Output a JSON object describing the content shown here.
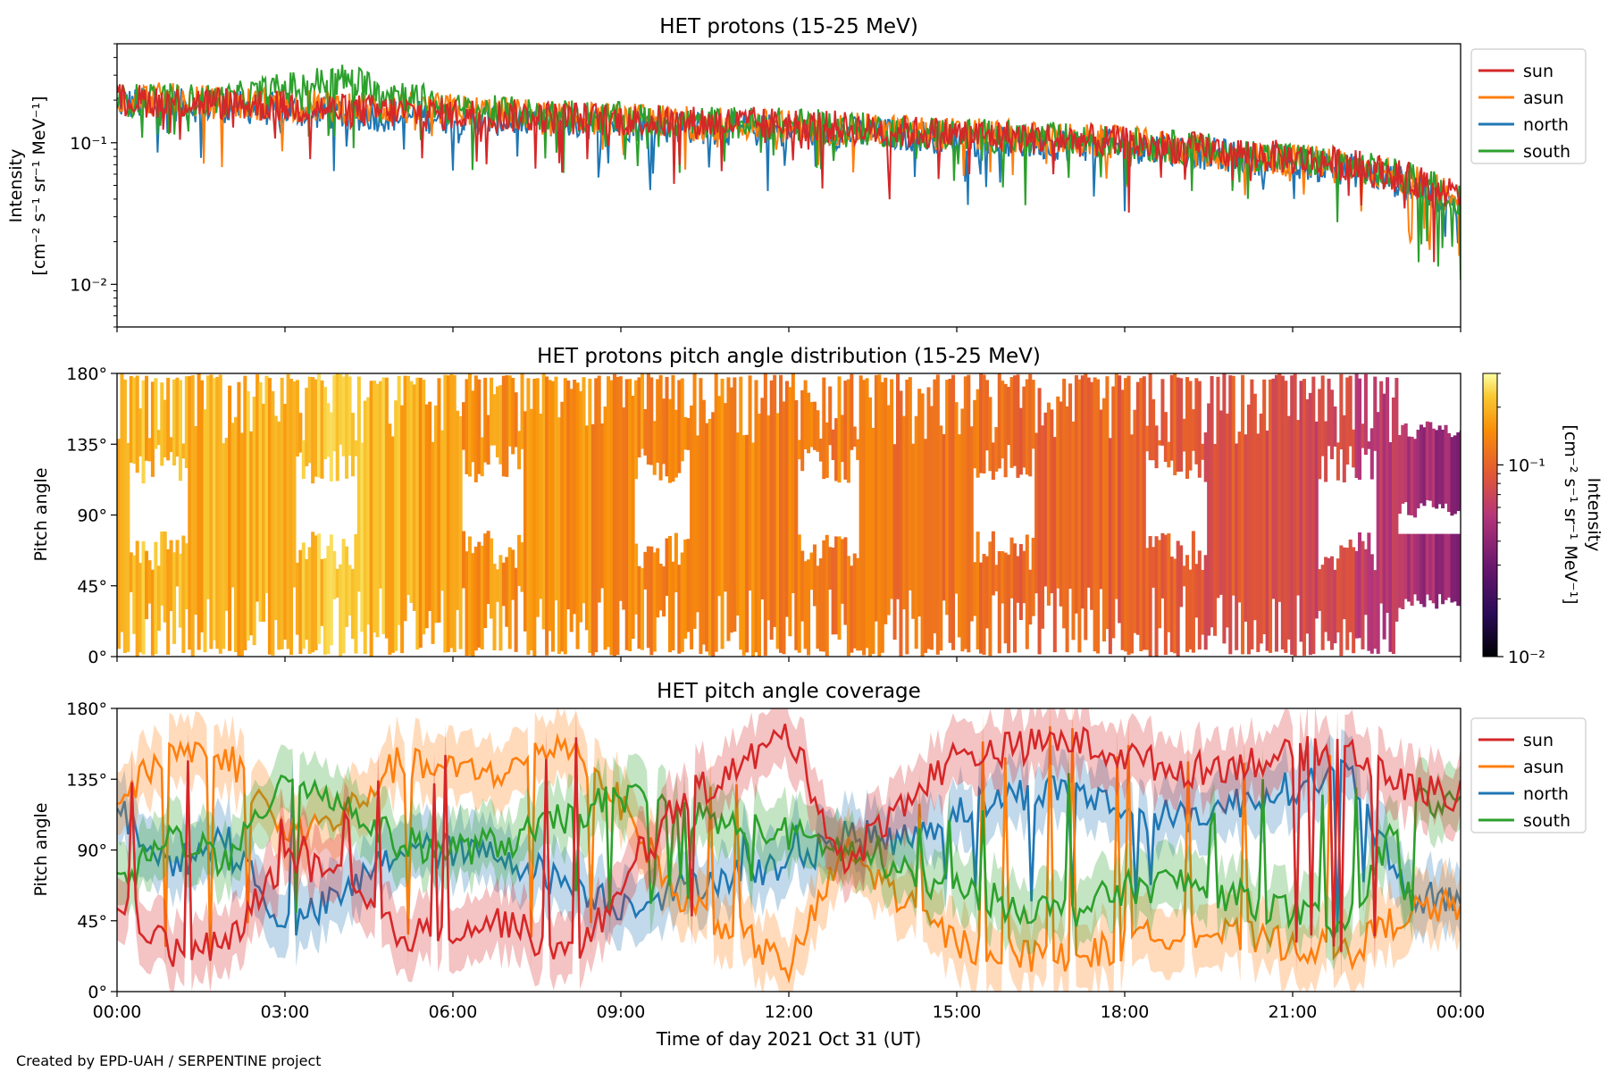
{
  "figure": {
    "xlabel": "Time of day 2021 Oct 31 (UT)",
    "credit": "Created by EPD-UAH / SERPENTINE project",
    "time_ticks": [
      "00:00",
      "03:00",
      "06:00",
      "09:00",
      "12:00",
      "15:00",
      "18:00",
      "21:00",
      "00:00"
    ]
  },
  "colors": {
    "sun": "#d62728",
    "asun": "#ff7f0e",
    "north": "#1f77b4",
    "south": "#2ca02c"
  },
  "chart_data": [
    {
      "type": "line",
      "title": "HET protons (15-25 MeV)",
      "xlabel": "",
      "ylabel": "Intensity",
      "ylabel_units": "[cm⁻² s⁻¹ sr⁻¹ MeV⁻¹]",
      "yscale": "log",
      "ylim": [
        0.005,
        0.5
      ],
      "yticks": [
        "10⁻¹",
        "10⁻²"
      ],
      "ytick_values": [
        0.1,
        0.01
      ],
      "x": [
        "00:00",
        "02:00",
        "04:00",
        "06:00",
        "08:00",
        "10:00",
        "12:00",
        "14:00",
        "16:00",
        "18:00",
        "20:00",
        "22:00",
        "23:30",
        "24:00"
      ],
      "series": [
        {
          "name": "sun",
          "values": [
            0.2,
            0.19,
            0.17,
            0.16,
            0.15,
            0.14,
            0.135,
            0.12,
            0.11,
            0.1,
            0.085,
            0.07,
            0.05,
            0.04
          ]
        },
        {
          "name": "asun",
          "values": [
            0.21,
            0.19,
            0.18,
            0.17,
            0.15,
            0.14,
            0.13,
            0.12,
            0.11,
            0.1,
            0.08,
            0.07,
            0.05,
            0.035
          ]
        },
        {
          "name": "north",
          "values": [
            0.19,
            0.18,
            0.16,
            0.15,
            0.14,
            0.13,
            0.12,
            0.115,
            0.1,
            0.095,
            0.08,
            0.065,
            0.045,
            0.03
          ]
        },
        {
          "name": "south",
          "values": [
            0.2,
            0.2,
            0.28,
            0.17,
            0.155,
            0.14,
            0.135,
            0.12,
            0.11,
            0.1,
            0.085,
            0.07,
            0.05,
            0.04
          ]
        }
      ],
      "legend": "right"
    },
    {
      "type": "heatmap",
      "title": "HET protons pitch angle distribution (15-25 MeV)",
      "xlabel": "",
      "ylabel": "Pitch angle",
      "ylim": [
        0,
        180
      ],
      "yticks": [
        "0°",
        "45°",
        "90°",
        "135°",
        "180°"
      ],
      "colorbar": {
        "label": "Intensity",
        "units": "[cm⁻² s⁻¹ sr⁻¹ MeV⁻¹]",
        "scale": "log",
        "range": [
          0.01,
          0.3
        ],
        "ticks": [
          "10⁻¹",
          "10⁻²"
        ],
        "colormap": "inferno"
      },
      "x": [
        "00:00",
        "02:00",
        "04:00",
        "06:00",
        "08:00",
        "10:00",
        "12:00",
        "14:00",
        "16:00",
        "18:00",
        "20:00",
        "22:00",
        "23:00",
        "24:00"
      ],
      "intensity": [
        0.2,
        0.19,
        0.22,
        0.16,
        0.15,
        0.14,
        0.135,
        0.12,
        0.11,
        0.1,
        0.085,
        0.07,
        0.05,
        0.04
      ]
    },
    {
      "type": "line",
      "title": "HET pitch angle coverage",
      "xlabel": "Time of day 2021 Oct 31 (UT)",
      "ylabel": "Pitch angle",
      "ylim": [
        0,
        180
      ],
      "yticks": [
        "0°",
        "45°",
        "90°",
        "135°",
        "180°"
      ],
      "x": [
        "00:00",
        "01:00",
        "02:00",
        "03:00",
        "04:00",
        "05:00",
        "06:00",
        "07:00",
        "08:00",
        "09:00",
        "10:00",
        "11:00",
        "12:00",
        "13:00",
        "14:00",
        "15:00",
        "16:00",
        "17:00",
        "18:00",
        "19:00",
        "20:00",
        "21:00",
        "22:00",
        "23:00",
        "24:00"
      ],
      "series": [
        {
          "name": "sun",
          "values": [
            60,
            25,
            30,
            85,
            70,
            35,
            40,
            45,
            20,
            60,
            120,
            140,
            165,
            80,
            120,
            150,
            155,
            160,
            150,
            140,
            145,
            150,
            155,
            130,
            125
          ]
        },
        {
          "name": "asun",
          "values": [
            120,
            155,
            150,
            100,
            110,
            145,
            140,
            140,
            160,
            120,
            60,
            40,
            15,
            90,
            60,
            30,
            25,
            20,
            30,
            40,
            35,
            30,
            25,
            50,
            55
          ]
        },
        {
          "name": "north",
          "values": [
            115,
            80,
            100,
            40,
            60,
            90,
            90,
            85,
            70,
            55,
            65,
            75,
            80,
            100,
            95,
            115,
            125,
            130,
            115,
            110,
            120,
            130,
            140,
            60,
            60
          ]
        },
        {
          "name": "south",
          "values": [
            65,
            100,
            80,
            140,
            120,
            95,
            90,
            95,
            110,
            125,
            115,
            105,
            100,
            90,
            75,
            65,
            55,
            50,
            65,
            70,
            60,
            50,
            40,
            120,
            120
          ]
        }
      ],
      "legend": "right"
    }
  ]
}
